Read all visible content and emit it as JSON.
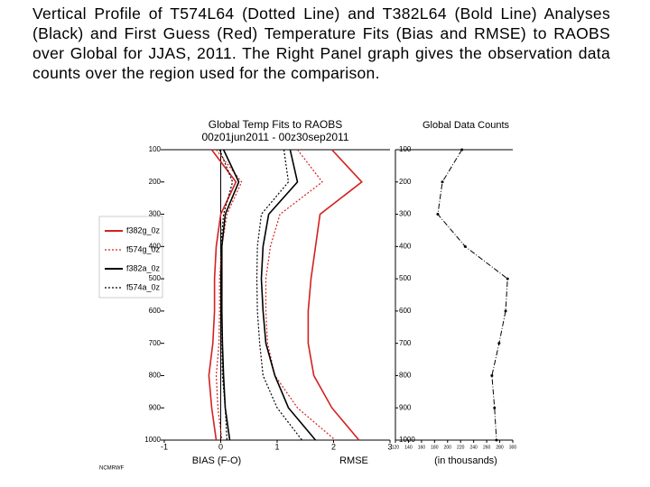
{
  "caption": "Vertical Profile of T574L64 (Dotted Line) and T382L64 (Bold Line) Analyses (Black) and First Guess (Red) Temperature Fits (Bias and RMSE) to RAOBS over Global for JJAS, 2011. The Right Panel graph gives the observation data counts over the region used for the comparison.",
  "footer": "NCMRWF",
  "chart_data": [
    {
      "type": "line",
      "title": "Global Temp Fits to RAOBS",
      "subtitle": "00z01jun2011 - 00z30sep2011",
      "xlabel": "BIAS (F-O)",
      "xlabel2": "RMSE",
      "legend": "left",
      "levels": [
        100,
        200,
        300,
        400,
        500,
        600,
        700,
        800,
        900,
        1000
      ],
      "xlim": [
        -1,
        3
      ],
      "xticks": [
        -1,
        0,
        1,
        2,
        3
      ],
      "ylim": [
        1000,
        100
      ],
      "yticks": [
        100,
        200,
        300,
        400,
        500,
        600,
        700,
        800,
        900,
        1000
      ],
      "series": [
        {
          "name": "f382g_0z",
          "color": "#d42020",
          "dash": false,
          "bias": [
            -0.16,
            0.27,
            0,
            -0.08,
            -0.11,
            -0.11,
            -0.14,
            -0.21,
            -0.16,
            -0.08
          ],
          "rmse": [
            1.97,
            2.5,
            1.76,
            1.68,
            1.6,
            1.55,
            1.55,
            1.65,
            1.97,
            2.45
          ]
        },
        {
          "name": "f574g_0z",
          "color": "#d42020",
          "dash": true,
          "bias": [
            -0.08,
            0.37,
            0.11,
            0.02,
            -0.02,
            -0.02,
            -0.03,
            -0.08,
            -0.05,
            0.02
          ],
          "rmse": [
            1.36,
            1.8,
            1.05,
            0.88,
            0.8,
            0.8,
            0.83,
            0.96,
            1.36,
            2.03
          ]
        },
        {
          "name": "f382a_0z",
          "color": "#000000",
          "dash": false,
          "bias": [
            0.05,
            0.32,
            0.08,
            0.02,
            0.02,
            0.02,
            0.03,
            0.05,
            0.08,
            0.16
          ],
          "rmse": [
            1.23,
            1.36,
            0.85,
            0.75,
            0.72,
            0.75,
            0.8,
            0.96,
            1.2,
            1.68
          ]
        },
        {
          "name": "f574a_0z",
          "color": "#000000",
          "dash": true,
          "bias": [
            -0.02,
            0.21,
            0.05,
            0,
            0,
            0.02,
            0.02,
            0.03,
            0.08,
            0.11
          ],
          "rmse": [
            1.12,
            1.2,
            0.72,
            0.65,
            0.64,
            0.65,
            0.69,
            0.75,
            1.0,
            1.44
          ]
        }
      ]
    },
    {
      "type": "line",
      "title": "Global Data Counts",
      "xlabel": "(in thousands)",
      "levels": [
        100,
        200,
        300,
        400,
        500,
        600,
        700,
        800,
        900,
        1000
      ],
      "xlim": [
        120,
        300
      ],
      "xticks": [
        120,
        140,
        160,
        180,
        200,
        220,
        240,
        260,
        280,
        300
      ],
      "ylim": [
        1000,
        100
      ],
      "yticks": [
        100,
        200,
        300,
        400,
        500,
        600,
        700,
        800,
        900,
        1000
      ],
      "color": "#000000",
      "values": [
        222,
        192,
        185,
        227,
        292,
        289,
        279,
        268,
        272,
        275
      ]
    }
  ]
}
